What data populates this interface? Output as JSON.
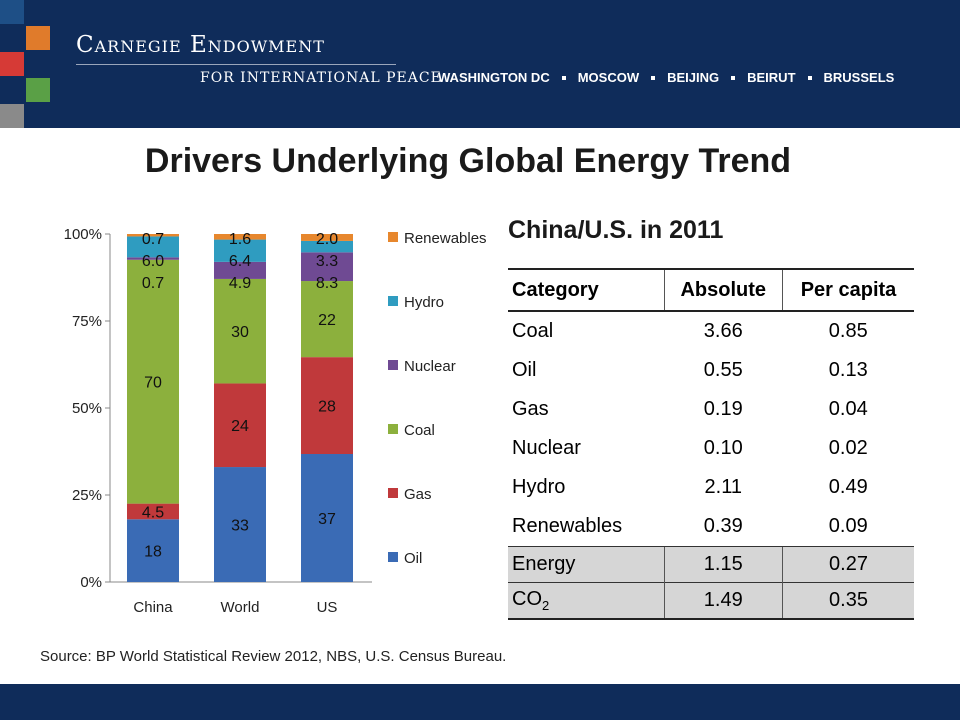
{
  "header": {
    "org_name": "Carnegie Endowment",
    "org_sub": "FOR INTERNATIONAL PEACE",
    "cities": [
      "WASHINGTON DC",
      "MOSCOW",
      "BEIJING",
      "BEIRUT",
      "BRUSSELS"
    ],
    "squares": [
      "#e07b2b",
      "#d63a36",
      "#5aa046",
      "#8a8a8a",
      "#1e4f86"
    ]
  },
  "title": "Drivers Underlying Global Energy Trend",
  "subtitle": "China/U.S. in 2011",
  "chart_data": {
    "type": "bar",
    "stacked": true,
    "percent": true,
    "categories": [
      "China",
      "World",
      "US"
    ],
    "series": [
      {
        "name": "Oil",
        "color": "#3a6bb5",
        "values": [
          18,
          33,
          37
        ]
      },
      {
        "name": "Gas",
        "color": "#c0393b",
        "values": [
          4.5,
          24,
          28
        ]
      },
      {
        "name": "Coal",
        "color": "#8cb03d",
        "values": [
          70,
          30,
          22
        ]
      },
      {
        "name": "Nuclear",
        "color": "#6f4a93",
        "values": [
          0.7,
          4.9,
          8.3
        ]
      },
      {
        "name": "Hydro",
        "color": "#2f9cc0",
        "values": [
          6.0,
          6.4,
          3.3
        ]
      },
      {
        "name": "Renewables",
        "color": "#e7872d",
        "values": [
          0.7,
          1.6,
          2.0
        ]
      }
    ],
    "data_labels": [
      [
        "18",
        "33",
        "37"
      ],
      [
        "4.5",
        "24",
        "28"
      ],
      [
        "70",
        "30",
        "22"
      ],
      [
        "0.7",
        "4.9",
        "8.3"
      ],
      [
        "6.0",
        "6.4",
        "3.3"
      ],
      [
        "0.7",
        "1.6",
        "2.0"
      ]
    ],
    "yticks": [
      "0%",
      "25%",
      "50%",
      "75%",
      "100%"
    ],
    "ylim": [
      0,
      100
    ],
    "legend": "right"
  },
  "table": {
    "headers": [
      "Category",
      "Absolute",
      "Per capita"
    ],
    "rows": [
      {
        "category": "Coal",
        "absolute": "3.66",
        "per_capita": "0.85"
      },
      {
        "category": "Oil",
        "absolute": "0.55",
        "per_capita": "0.13"
      },
      {
        "category": "Gas",
        "absolute": "0.19",
        "per_capita": "0.04"
      },
      {
        "category": "Nuclear",
        "absolute": "0.10",
        "per_capita": "0.02"
      },
      {
        "category": "Hydro",
        "absolute": "2.11",
        "per_capita": "0.49"
      },
      {
        "category": "Renewables",
        "absolute": "0.39",
        "per_capita": "0.09"
      }
    ],
    "highlight_rows": [
      {
        "category": "Energy",
        "absolute": "1.15",
        "per_capita": "0.27"
      },
      {
        "category": "CO",
        "category_sub": "2",
        "absolute": "1.49",
        "per_capita": "0.35"
      }
    ]
  },
  "source": "Source: BP World Statistical Review 2012, NBS, U.S. Census Bureau."
}
